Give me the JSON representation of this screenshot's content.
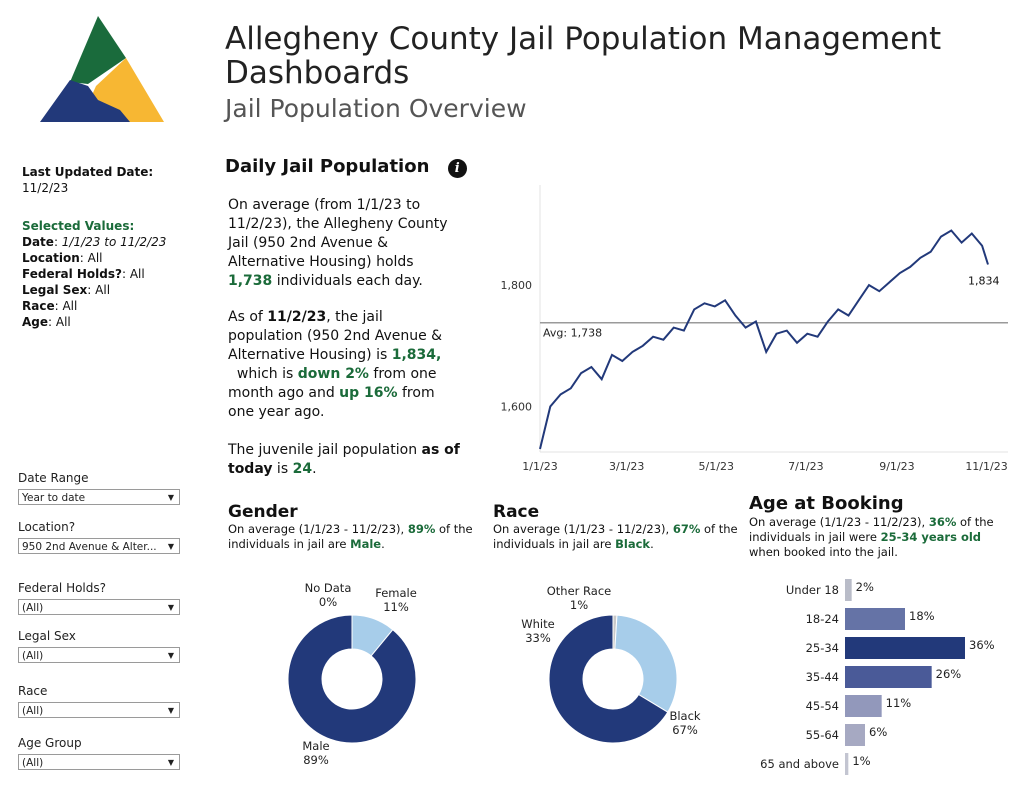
{
  "header": {
    "title": "Allegheny County Jail Population Management Dashboards",
    "subtitle": "Jail Population Overview"
  },
  "meta": {
    "last_updated_label": "Last Updated Date:",
    "last_updated_value": "11/2/23",
    "selected_values_label": "Selected Values:",
    "date_label": "Date",
    "date_value": "1/1/23 to 11/2/23",
    "location_label": "Location",
    "location_value": "All",
    "federal_label": "Federal Holds?",
    "federal_value": "All",
    "sex_label": "Legal Sex",
    "sex_value": "All",
    "race_label": "Race",
    "race_value": "All",
    "age_label": "Age",
    "age_value": "All"
  },
  "filters": [
    {
      "label": "Date Range",
      "value": "Year to date"
    },
    {
      "label": "Location?",
      "value": "950 2nd Avenue & Alter..."
    },
    {
      "label": "Federal Holds?",
      "value": "(All)"
    },
    {
      "label": "Legal Sex",
      "value": "(All)"
    },
    {
      "label": "Race",
      "value": "(All)"
    },
    {
      "label": "Age Group",
      "value": "(All)"
    }
  ],
  "daily": {
    "heading": "Daily Jail Population",
    "p1_a": "On average (from 1/1/23 to 11/2/23), the Allegheny County Jail (950 2nd Avenue & Alternative Housing) holds ",
    "p1_value": "1,738",
    "p1_b": " individuals each day.",
    "p2_a": "As of ",
    "p2_date": "11/2/23",
    "p2_b": ", the jail population (950 2nd Avenue & Alternative Housing) is ",
    "p2_value": "1,834,",
    "p2_c": "  which is ",
    "p2_down": "down 2%",
    "p2_d": " from one month ago and ",
    "p2_up": "up 16%",
    "p2_e": " from one year ago.",
    "p3_a": "The juvenile jail population ",
    "p3_b": "as of today",
    "p3_c": " is ",
    "p3_value": "24",
    "p3_d": "."
  },
  "gender": {
    "heading": "Gender",
    "desc_a": "On average (1/1/23 - 11/2/23), ",
    "desc_pct": "89%",
    "desc_b": " of the individuals in jail are ",
    "desc_val": "Male",
    "desc_c": "."
  },
  "race": {
    "heading": "Race",
    "desc_a": "On average (1/1/23 - 11/2/23), ",
    "desc_pct": "67%",
    "desc_b": " of the individuals in jail are ",
    "desc_val": "Black",
    "desc_c": "."
  },
  "age": {
    "heading": "Age at Booking",
    "desc_a": "On average (1/1/23 - 11/2/23), ",
    "desc_pct": "36%",
    "desc_b": " of the individuals in jail were ",
    "desc_val": "25-34 years old",
    "desc_c": " when booked into the jail."
  },
  "colors": {
    "navy": "#22397a",
    "light_blue": "#a7cdea",
    "green_text": "#1b6b3a",
    "avg_line": "#9a9a9a"
  },
  "chart_data": [
    {
      "type": "line",
      "title": "Daily Jail Population",
      "x_ticks": [
        "1/1/23",
        "3/1/23",
        "5/1/23",
        "7/1/23",
        "9/1/23",
        "11/1/23"
      ],
      "y_ticks": [
        "1,600",
        "1,800"
      ],
      "ylim": [
        1525,
        1965
      ],
      "x_range": [
        "1/1/23",
        "11/2/23"
      ],
      "reference_line": {
        "label": "Avg: 1,738",
        "value": 1738
      },
      "end_label": "1,834",
      "series": [
        {
          "x": [
            "1/1/23",
            "1/8/23",
            "1/15/23",
            "1/22/23",
            "1/29/23",
            "2/5/23",
            "2/12/23",
            "2/19/23",
            "2/26/23",
            "3/5/23",
            "3/12/23",
            "3/19/23",
            "3/26/23",
            "4/2/23",
            "4/9/23",
            "4/16/23",
            "4/23/23",
            "4/30/23",
            "5/7/23",
            "5/14/23",
            "5/21/23",
            "5/28/23",
            "6/4/23",
            "6/11/23",
            "6/18/23",
            "6/25/23",
            "7/2/23",
            "7/9/23",
            "7/16/23",
            "7/23/23",
            "7/30/23",
            "8/6/23",
            "8/13/23",
            "8/20/23",
            "8/27/23",
            "9/3/23",
            "9/10/23",
            "9/17/23",
            "9/24/23",
            "10/1/23",
            "10/8/23",
            "10/15/23",
            "10/22/23",
            "10/29/23",
            "11/2/23"
          ],
          "values": [
            1530,
            1600,
            1620,
            1630,
            1655,
            1665,
            1645,
            1685,
            1675,
            1690,
            1700,
            1715,
            1710,
            1730,
            1725,
            1760,
            1770,
            1765,
            1775,
            1750,
            1730,
            1740,
            1690,
            1720,
            1725,
            1705,
            1720,
            1715,
            1740,
            1760,
            1750,
            1775,
            1800,
            1790,
            1805,
            1820,
            1830,
            1845,
            1855,
            1880,
            1890,
            1870,
            1885,
            1865,
            1834
          ]
        }
      ]
    },
    {
      "type": "pie",
      "title": "Gender",
      "labels": [
        "Male",
        "Female",
        "No Data"
      ],
      "values": [
        89,
        11,
        0
      ],
      "display": [
        "89%",
        "11%",
        "0%"
      ],
      "colors": [
        "#22397a",
        "#a7cdea",
        "#3d3d3d"
      ]
    },
    {
      "type": "pie",
      "title": "Race",
      "labels": [
        "Black",
        "White",
        "Other Race"
      ],
      "values": [
        67,
        33,
        1
      ],
      "display": [
        "67%",
        "33%",
        "1%"
      ],
      "colors": [
        "#22397a",
        "#a7cdea",
        "#c9c9c9"
      ]
    },
    {
      "type": "bar",
      "title": "Age at Booking",
      "categories": [
        "Under 18",
        "18-24",
        "25-34",
        "35-44",
        "45-54",
        "55-64",
        "65 and above"
      ],
      "values": [
        2,
        18,
        36,
        26,
        11,
        6,
        1
      ],
      "display": [
        "2%",
        "18%",
        "36%",
        "26%",
        "11%",
        "6%",
        "1%"
      ],
      "colors": [
        "#b9bcc8",
        "#6573a6",
        "#22397a",
        "#4a5a98",
        "#9298bb",
        "#a6a9c2",
        "#c3c5d1"
      ]
    }
  ]
}
